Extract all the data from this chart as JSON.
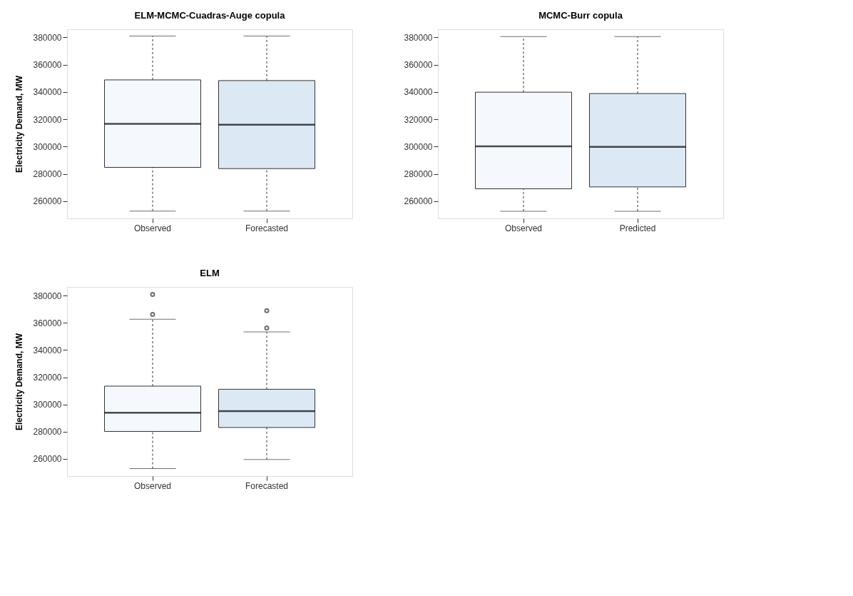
{
  "chart_data": [
    {
      "type": "box",
      "title": "ELM-MCMC-Cuadras-Auge copula",
      "ylabel": "Electricity Demand, MW",
      "categories": [
        "Observed",
        "Forecasted"
      ],
      "colors": [
        "#f5f8fd",
        "#dde8f5"
      ],
      "ylim": [
        247400,
        386000
      ],
      "yticks": [
        260000,
        280000,
        300000,
        320000,
        340000,
        360000,
        380000
      ],
      "boxes": [
        {
          "low": 252800,
          "q1": 284800,
          "median": 316700,
          "q3": 348900,
          "high": 381000
        },
        {
          "low": 252800,
          "q1": 283900,
          "median": 316000,
          "q3": 348400,
          "high": 381000
        }
      ]
    },
    {
      "type": "box",
      "title": "MCMC-Burr copula",
      "categories": [
        "Observed",
        "Predicted"
      ],
      "colors": [
        "#f5f8fd",
        "#dde8f5"
      ],
      "ylim": [
        247400,
        386000
      ],
      "yticks": [
        260000,
        280000,
        300000,
        320000,
        340000,
        360000,
        380000
      ],
      "boxes": [
        {
          "low": 252600,
          "q1": 269100,
          "median": 300200,
          "q3": 339900,
          "high": 380700
        },
        {
          "low": 252600,
          "q1": 270500,
          "median": 299800,
          "q3": 338900,
          "high": 380700
        }
      ]
    },
    {
      "type": "box",
      "title": "ELM",
      "ylabel": "Electricity Demand, MW",
      "categories": [
        "Observed",
        "Forecasted"
      ],
      "colors": [
        "#f5f8fd",
        "#dde8f5"
      ],
      "ylim": [
        247400,
        386400
      ],
      "yticks": [
        260000,
        280000,
        300000,
        320000,
        340000,
        360000,
        380000
      ],
      "boxes": [
        {
          "low": 252900,
          "q1": 280200,
          "median": 294000,
          "q3": 313500,
          "high": 362600,
          "outliers": [
            380900,
            366200
          ]
        },
        {
          "low": 259600,
          "q1": 283100,
          "median": 295100,
          "q3": 311200,
          "high": 353400,
          "outliers": [
            369000,
            356200
          ]
        }
      ]
    }
  ]
}
